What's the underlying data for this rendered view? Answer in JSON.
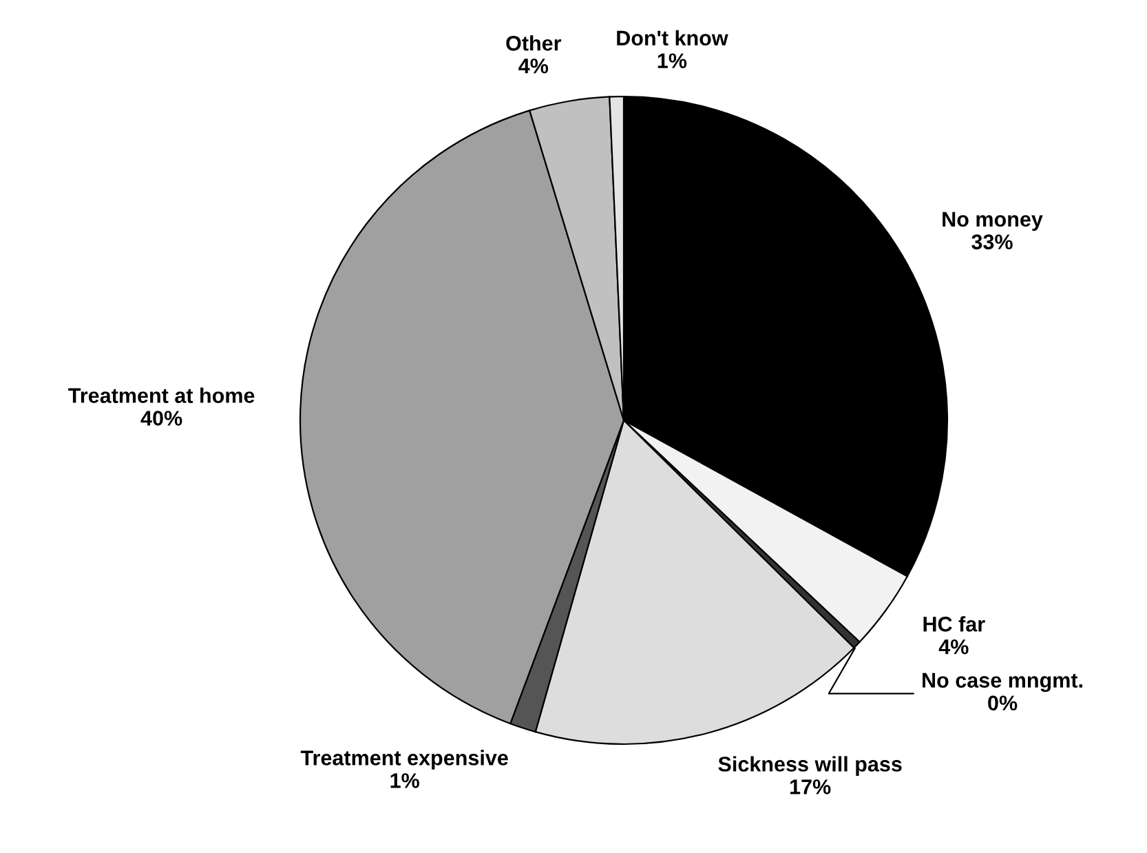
{
  "chart_data": {
    "type": "pie",
    "categories": [
      "No money",
      "HC far",
      "No case mngmt.",
      "Sickness will pass",
      "Treatment expensive",
      "Treatment at home",
      "Other",
      "Don't know"
    ],
    "values": [
      33,
      4,
      0.4,
      17,
      1.3,
      39.6,
      4,
      0.7
    ],
    "value_labels": [
      "33%",
      "4%",
      "0%",
      "17%",
      "1%",
      "40%",
      "4%",
      "1%"
    ],
    "colors": [
      "#000000",
      "#f2f2f2",
      "#333333",
      "#dddddd",
      "#555555",
      "#a0a0a0",
      "#c0c0c0",
      "#e4e4e4"
    ],
    "legend": false
  }
}
